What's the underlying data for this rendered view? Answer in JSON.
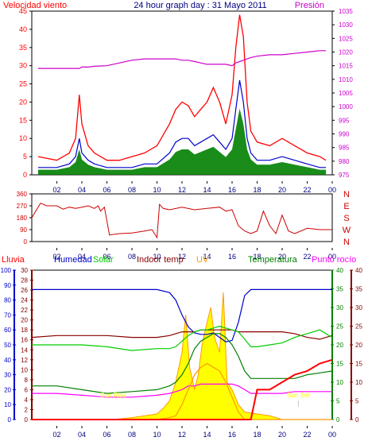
{
  "header": {
    "left_title": "Velocidad viento",
    "center_title": "24 hour graph day : 31 Mayo 2011",
    "right_title": "Presión"
  },
  "colors": {
    "wind": "#ff0000",
    "gust": "#ff0000",
    "avg_wind": "#0000cc",
    "wind_green": "#008000",
    "pressure": "#cc00cc",
    "direction": "#cc0000",
    "humidity": "#0000cc",
    "solar": "#00cc00",
    "indoor_temp": "#880000",
    "uv": "#ff9900",
    "temperature": "#008000",
    "dew_point": "#ff00ff",
    "rain": "#ff0000",
    "solar_fill": "#ffff00",
    "axis_dark": "#000080"
  },
  "x_ticks": [
    "02",
    "04",
    "06",
    "08",
    "10",
    "12",
    "14",
    "16",
    "18",
    "20",
    "22",
    "00"
  ],
  "panels": {
    "wind": {
      "left_axis": [
        "0",
        "5",
        "10",
        "15",
        "20",
        "25",
        "30",
        "35",
        "40",
        "45"
      ],
      "right_axis": [
        "975",
        "980",
        "985",
        "990",
        "995",
        "1000",
        "1005",
        "1010",
        "1015",
        "1020",
        "1025",
        "1030",
        "1035"
      ]
    },
    "direction": {
      "left_axis": [
        "0",
        "90",
        "180",
        "270",
        "360"
      ],
      "right_axis": [
        "N",
        "W",
        "S",
        "E",
        "N"
      ]
    },
    "weather": {
      "legend": [
        "Lluvia",
        "Humedad",
        "Solar",
        "Indoor temp",
        "UV",
        "Temperatura",
        "Punto rocío"
      ],
      "axis1": [
        "0",
        "10",
        "20",
        "30",
        "40",
        "50",
        "60",
        "70",
        "80",
        "90",
        "100"
      ],
      "axis2": [
        "0",
        "2",
        "4",
        "6",
        "8",
        "10",
        "12",
        "14",
        "16",
        "18",
        "20",
        "22",
        "24",
        "26",
        "28",
        "30"
      ],
      "axis3": [
        "0",
        "5",
        "10",
        "15",
        "20",
        "25",
        "30",
        "35",
        "40"
      ],
      "axis4": [
        "0",
        "5",
        "10",
        "15",
        "20",
        "25",
        "30",
        "35",
        "40"
      ],
      "sun_rise": "Sun Rise",
      "sun_set": "Sun Set"
    }
  },
  "chart_data": [
    {
      "type": "line",
      "title": "Velocidad viento",
      "x_hours": [
        0.5,
        2,
        3,
        3.5,
        3.8,
        4,
        4.5,
        5,
        6,
        7,
        8,
        9,
        10,
        11,
        11.5,
        12,
        12.5,
        13,
        13.5,
        14,
        14.5,
        15,
        15.5,
        16,
        16.3,
        16.6,
        16.9,
        17.2,
        17.5,
        18,
        19,
        20,
        21,
        22,
        23,
        23.5
      ],
      "series": [
        {
          "name": "wind_max",
          "values": [
            5,
            4,
            6,
            10,
            22,
            14,
            8,
            6,
            4,
            4,
            5,
            6,
            8,
            14,
            18,
            20,
            19,
            16,
            18,
            20,
            24,
            20,
            14,
            22,
            35,
            44,
            38,
            20,
            12,
            9,
            8,
            10,
            8,
            6,
            5,
            4
          ]
        },
        {
          "name": "wind_avg",
          "values": [
            2,
            2,
            3,
            5,
            10,
            6,
            4,
            3,
            2,
            2,
            2,
            3,
            3,
            6,
            9,
            10,
            10,
            8,
            9,
            10,
            11,
            9,
            7,
            10,
            18,
            26,
            20,
            10,
            6,
            4,
            4,
            5,
            4,
            3,
            2,
            2
          ]
        },
        {
          "name": "presion",
          "values": [
            1014,
            1014,
            1014,
            1014,
            1014,
            1014.5,
            1014.5,
            1014.8,
            1015,
            1016,
            1017,
            1017.5,
            1017.5,
            1017.5,
            1017.5,
            1017,
            1017,
            1016.5,
            1016,
            1015.5,
            1015.5,
            1015.5,
            1015.5,
            1015,
            1016,
            1016.5,
            1017,
            1017.5,
            1018,
            1018.5,
            1019,
            1019,
            1019.5,
            1020,
            1020.5,
            1020.5
          ]
        }
      ],
      "ylim": [
        0,
        45
      ],
      "y2lim": [
        975,
        1035
      ]
    },
    {
      "type": "line",
      "title": "",
      "x_hours": [
        0,
        0.7,
        1.2,
        2,
        2.5,
        3,
        3.5,
        4,
        4.5,
        5,
        5.3,
        5.5,
        5.8,
        6.2,
        7,
        8,
        9,
        9.6,
        10,
        10.2,
        10.5,
        11,
        12,
        13,
        14,
        15,
        15.5,
        16,
        16.5,
        17,
        17.5,
        18,
        18.5,
        19,
        19.5,
        20,
        20.5,
        21,
        22,
        23,
        24
      ],
      "values": [
        180,
        290,
        270,
        270,
        245,
        260,
        250,
        260,
        270,
        250,
        270,
        230,
        260,
        50,
        60,
        65,
        80,
        90,
        30,
        280,
        250,
        240,
        260,
        240,
        250,
        260,
        230,
        240,
        120,
        80,
        60,
        80,
        230,
        120,
        60,
        200,
        80,
        60,
        100,
        90,
        90
      ],
      "ylim": [
        0,
        360
      ]
    },
    {
      "type": "line",
      "title": "",
      "x_hours": [
        0,
        2,
        4,
        6,
        8,
        10,
        11,
        11.5,
        12,
        12.5,
        13,
        13.5,
        14,
        14.5,
        15,
        15.5,
        16,
        16.5,
        17,
        17.5,
        18,
        19,
        20,
        21,
        22,
        23,
        24
      ],
      "series": [
        {
          "name": "Humedad",
          "values": [
            87,
            87,
            87,
            87,
            87,
            87,
            85,
            80,
            70,
            62,
            58,
            57,
            57,
            58,
            55,
            52,
            53,
            65,
            83,
            87,
            87,
            87,
            87,
            87,
            87,
            87,
            87
          ]
        },
        {
          "name": "Indoor temp",
          "values": [
            22,
            22.5,
            22.5,
            22.5,
            22,
            22,
            22.5,
            23,
            23.5,
            23.5,
            23.5,
            24,
            24,
            24,
            24,
            24,
            24,
            23.5,
            23.5,
            23.5,
            23.5,
            23.5,
            23.5,
            23,
            22,
            21.5,
            22.5
          ]
        },
        {
          "name": "Solar",
          "values": [
            20,
            20,
            20,
            19.5,
            18.5,
            19,
            19,
            19.5,
            21,
            22.5,
            23.5,
            24,
            24,
            24.5,
            25,
            24.5,
            24,
            23.5,
            21.5,
            19.5,
            19.5,
            20,
            20.5,
            22,
            23,
            24,
            22
          ]
        },
        {
          "name": "Temperatura",
          "values": [
            9,
            9,
            8,
            7,
            7.5,
            8,
            9,
            10,
            12,
            15,
            19,
            21,
            22,
            23,
            23,
            22,
            20,
            17,
            13,
            11,
            11,
            11,
            11,
            11,
            12,
            12.5,
            13
          ]
        },
        {
          "name": "Punto rocío",
          "values": [
            7,
            7,
            6.5,
            6,
            6,
            6.5,
            7,
            7.5,
            8,
            9,
            9,
            9.5,
            9.5,
            9.5,
            9.5,
            9.5,
            9.5,
            9,
            8,
            7,
            7,
            7,
            7,
            7.5,
            7.5,
            7.5,
            7.5
          ]
        },
        {
          "name": "UV",
          "values": [
            0,
            0,
            0,
            0,
            0,
            0,
            0.5,
            1,
            4,
            8,
            12,
            14,
            15,
            14,
            13,
            10,
            6,
            2,
            0,
            0,
            0,
            0,
            0,
            0,
            0,
            0,
            0
          ]
        },
        {
          "name": "Lluvia",
          "values": [
            0,
            0,
            0,
            0,
            0,
            0,
            0,
            0,
            0,
            0,
            0,
            0,
            0,
            0,
            0,
            0,
            0,
            0,
            0,
            0,
            8,
            8,
            10,
            12,
            13,
            15,
            16
          ]
        }
      ],
      "solar_fill": {
        "x_hours": [
          6.5,
          8,
          9,
          10,
          10.5,
          11,
          11.5,
          12,
          12.3,
          12.6,
          13,
          13.3,
          13.6,
          14,
          14.3,
          14.6,
          15,
          15.3,
          15.6,
          16,
          16.5,
          17,
          18,
          19,
          20
        ],
        "values": [
          0,
          0.5,
          1,
          1.5,
          3,
          5,
          10,
          18,
          28,
          14,
          8,
          12,
          20,
          26,
          30,
          22,
          18,
          34,
          10,
          8,
          4,
          2,
          1.5,
          1,
          0
        ]
      },
      "ylim": [
        0,
        100
      ]
    }
  ]
}
